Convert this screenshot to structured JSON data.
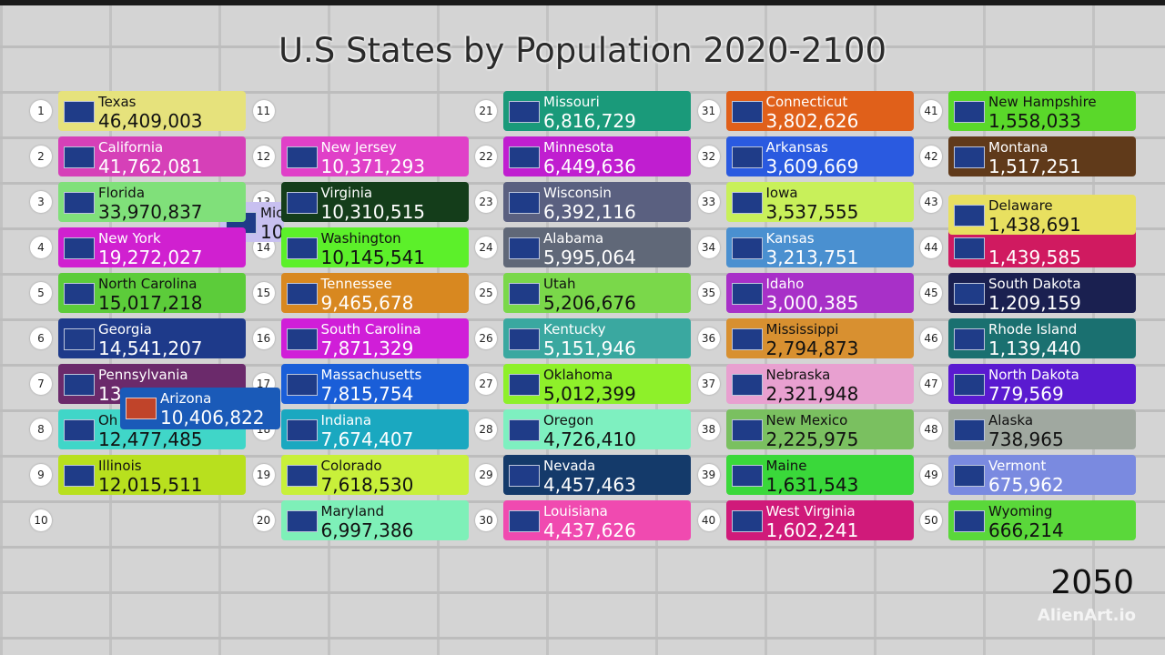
{
  "title": "U.S States by Population 2020-2100",
  "year": "2050",
  "watermark": "AlienArt.io",
  "ranks": [
    1,
    2,
    3,
    4,
    5,
    6,
    7,
    8,
    9,
    10,
    11,
    12,
    13,
    14,
    15,
    16,
    17,
    18,
    19,
    20,
    21,
    22,
    23,
    24,
    25,
    26,
    27,
    28,
    29,
    30,
    31,
    32,
    33,
    34,
    35,
    36,
    37,
    38,
    39,
    40,
    41,
    42,
    43,
    44,
    45,
    46,
    47,
    48,
    49,
    50
  ],
  "cards": [
    {
      "rank": 1,
      "name": "Texas",
      "population": "46,409,003",
      "color": "#e6e27c"
    },
    {
      "rank": 2,
      "name": "California",
      "population": "41,762,081",
      "color": "#d640b8"
    },
    {
      "rank": 3,
      "name": "Florida",
      "population": "33,970,837",
      "color": "#80e07a"
    },
    {
      "rank": 4,
      "name": "New York",
      "population": "19,272,027",
      "color": "#d020d0"
    },
    {
      "rank": 5,
      "name": "North Carolina",
      "population": "15,017,218",
      "color": "#5ccc3a"
    },
    {
      "rank": 6,
      "name": "Georgia",
      "population": "14,541,207",
      "color": "#1e3a8a"
    },
    {
      "rank": 7,
      "name": "Pennsylvania",
      "population": "13",
      "color": "#6b2a6b"
    },
    {
      "rank": 8,
      "name": "Oh",
      "population": "12,477,485",
      "color": "#40d6c8"
    },
    {
      "rank": 9,
      "name": "Illinois",
      "population": "12,015,511",
      "color": "#b8e01e"
    },
    {
      "rank": 12,
      "name": "New Jersey",
      "population": "10,371,293",
      "color": "#e040c8"
    },
    {
      "rank": 13,
      "name": "Virginia",
      "population": "10,310,515",
      "color": "#143d1a"
    },
    {
      "rank": 14,
      "name": "Washington",
      "population": "10,145,541",
      "color": "#5cf02a"
    },
    {
      "rank": 15,
      "name": "Tennessee",
      "population": "9,465,678",
      "color": "#d88820"
    },
    {
      "rank": 16,
      "name": "South Carolina",
      "population": "7,871,329",
      "color": "#d01ed8"
    },
    {
      "rank": 17,
      "name": "Massachusetts",
      "population": "7,815,754",
      "color": "#1a5ed8"
    },
    {
      "rank": 18,
      "name": "Indiana",
      "population": "7,674,407",
      "color": "#1aa8c0"
    },
    {
      "rank": 19,
      "name": "Colorado",
      "population": "7,618,530",
      "color": "#c8f03a"
    },
    {
      "rank": 20,
      "name": "Maryland",
      "population": "6,997,386",
      "color": "#7ef0b8"
    },
    {
      "rank": 21,
      "name": "Missouri",
      "population": "6,816,729",
      "color": "#1a9a7a"
    },
    {
      "rank": 22,
      "name": "Minnesota",
      "population": "6,449,636",
      "color": "#c01ed0"
    },
    {
      "rank": 23,
      "name": "Wisconsin",
      "population": "6,392,116",
      "color": "#5a6080"
    },
    {
      "rank": 24,
      "name": "Alabama",
      "population": "5,995,064",
      "color": "#606878"
    },
    {
      "rank": 25,
      "name": "Utah",
      "population": "5,206,676",
      "color": "#7ad84a"
    },
    {
      "rank": 26,
      "name": "Kentucky",
      "population": "5,151,946",
      "color": "#3aa8a0"
    },
    {
      "rank": 27,
      "name": "Oklahoma",
      "population": "5,012,399",
      "color": "#8ef02a"
    },
    {
      "rank": 28,
      "name": "Oregon",
      "population": "4,726,410",
      "color": "#7ef0c0"
    },
    {
      "rank": 29,
      "name": "Nevada",
      "population": "4,457,463",
      "color": "#143a6a"
    },
    {
      "rank": 30,
      "name": "Louisiana",
      "population": "4,437,626",
      "color": "#f04ab0"
    },
    {
      "rank": 31,
      "name": "Connecticut",
      "population": "3,802,626",
      "color": "#e0601a"
    },
    {
      "rank": 32,
      "name": "Arkansas",
      "population": "3,609,669",
      "color": "#2a5ae0"
    },
    {
      "rank": 33,
      "name": "Iowa",
      "population": "3,537,555",
      "color": "#c8f05a"
    },
    {
      "rank": 34,
      "name": "Kansas",
      "population": "3,213,751",
      "color": "#4a90d0"
    },
    {
      "rank": 35,
      "name": "Idaho",
      "population": "3,000,385",
      "color": "#a830c8"
    },
    {
      "rank": 36,
      "name": "Mississippi",
      "population": "2,794,873",
      "color": "#d89030"
    },
    {
      "rank": 37,
      "name": "Nebraska",
      "population": "2,321,948",
      "color": "#e8a0d0"
    },
    {
      "rank": 38,
      "name": "New Mexico",
      "population": "2,225,975",
      "color": "#7ac060"
    },
    {
      "rank": 39,
      "name": "Maine",
      "population": "1,631,543",
      "color": "#3ad83a"
    },
    {
      "rank": 40,
      "name": "West Virginia",
      "population": "1,602,241",
      "color": "#d01a7a"
    },
    {
      "rank": 41,
      "name": "New Hampshire",
      "population": "1,558,033",
      "color": "#5ad82a"
    },
    {
      "rank": 42,
      "name": "Montana",
      "population": "1,517,251",
      "color": "#603a1a"
    },
    {
      "rank": 44,
      "population": "1,439,585",
      "color": "#d01a60"
    },
    {
      "rank": 43,
      "name": "Delaware",
      "population": "1,438,691",
      "color": "#e8e060"
    },
    {
      "rank": 45,
      "name": "South Dakota",
      "population": "1,209,159",
      "color": "#1a2050"
    },
    {
      "rank": 46,
      "name": "Rhode Island",
      "population": "1,139,440",
      "color": "#1a7070"
    },
    {
      "rank": 47,
      "name": "North Dakota",
      "population": "779,569",
      "color": "#5a1ad0"
    },
    {
      "rank": 48,
      "name": "Alaska",
      "population": "738,965",
      "color": "#a0a8a0"
    },
    {
      "rank": 49,
      "name": "Vermont",
      "population": "675,962",
      "color": "#7a8ae0"
    },
    {
      "rank": 50,
      "name": "Wyoming",
      "population": "666,214",
      "color": "#5ad83a"
    }
  ],
  "moving": [
    {
      "name": "Mic",
      "population": "10",
      "color": "#c8c0f0"
    },
    {
      "name": "Arizona",
      "population": "10,406,822",
      "color": "#1a5ab8"
    }
  ]
}
